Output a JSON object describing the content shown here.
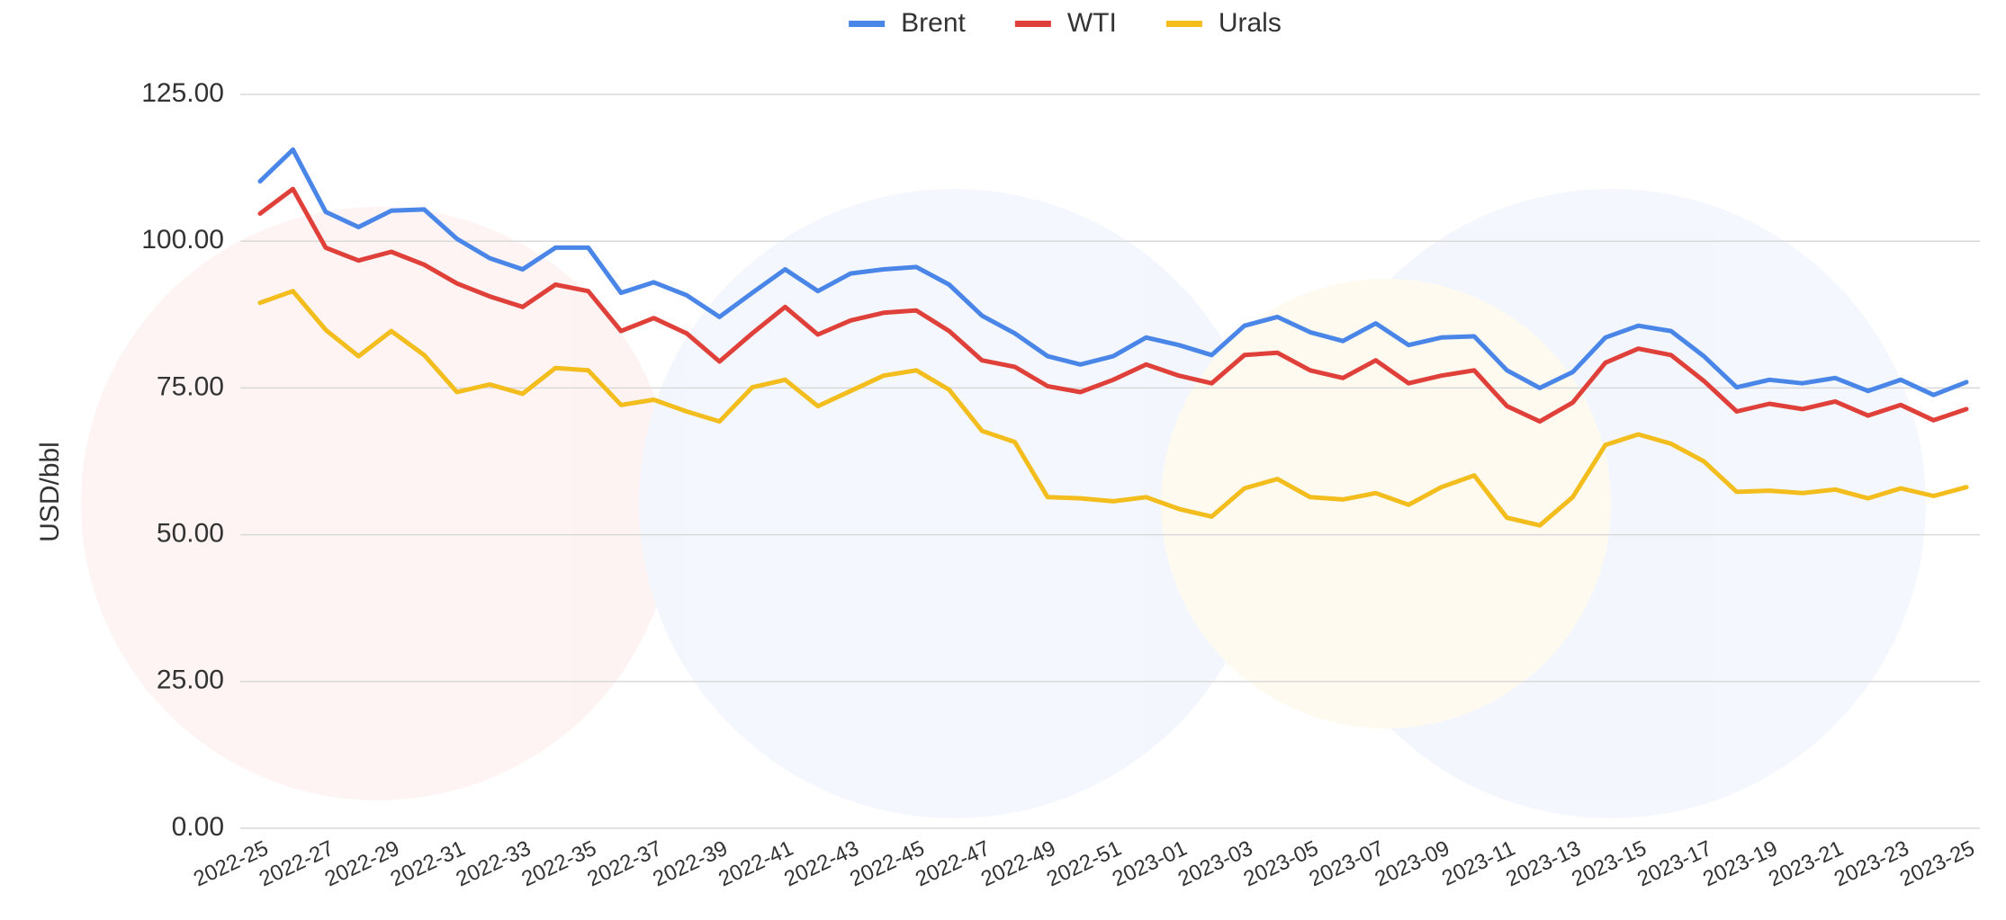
{
  "chart_data": {
    "type": "line",
    "y_label": "USD/bbl",
    "categories": [
      "2022-25",
      null,
      "2022-27",
      null,
      "2022-29",
      null,
      "2022-31",
      null,
      "2022-33",
      null,
      "2022-35",
      null,
      "2022-37",
      null,
      "2022-39",
      null,
      "2022-41",
      null,
      "2022-43",
      null,
      "2022-45",
      null,
      "2022-47",
      null,
      "2022-49",
      null,
      "2022-51",
      null,
      "2023-01",
      null,
      "2023-03",
      null,
      "2023-05",
      null,
      "2023-07",
      null,
      "2023-09",
      null,
      "2023-11",
      null,
      "2023-13",
      null,
      "2023-15",
      null,
      "2023-17",
      null,
      "2023-19",
      null,
      "2023-21",
      null,
      "2023-23",
      null,
      "2023-25"
    ],
    "series": [
      {
        "name": "Brent",
        "color": "#4a86e8",
        "values": [
          110.2,
          115.6,
          105,
          102.4,
          105.2,
          105.4,
          100.4,
          97.1,
          95.2,
          98.9,
          98.9,
          91.2,
          93,
          90.8,
          87.1,
          91.2,
          95.2,
          91.5,
          94.5,
          95.2,
          95.6,
          92.6,
          87.3,
          84.3,
          80.4,
          79,
          80.4,
          83.6,
          82.3,
          80.6,
          85.6,
          87.1,
          84.5,
          83,
          86,
          82.3,
          83.6,
          83.8,
          78,
          75,
          77.7,
          83.6,
          85.6,
          84.7,
          80.4,
          75.1,
          76.4,
          75.8,
          76.7,
          74.5,
          76.4,
          73.8,
          76
        ]
      },
      {
        "name": "WTI",
        "color": "#e0403a",
        "values": [
          104.7,
          108.9,
          98.9,
          96.7,
          98.2,
          96,
          92.8,
          90.6,
          88.8,
          92.6,
          91.5,
          84.7,
          86.9,
          84.3,
          79.5,
          84.3,
          88.8,
          84.1,
          86.5,
          87.8,
          88.2,
          84.7,
          79.7,
          78.6,
          75.3,
          74.3,
          76.4,
          79,
          77.1,
          75.8,
          80.6,
          81,
          78,
          76.7,
          79.7,
          75.8,
          77.1,
          78,
          71.9,
          69.3,
          72.5,
          79.3,
          81.7,
          80.6,
          76.2,
          71,
          72.3,
          71.4,
          72.7,
          70.3,
          72.1,
          69.5,
          71.4
        ]
      },
      {
        "name": "Urals",
        "color": "#f2bd1d",
        "values": [
          89.5,
          91.5,
          84.9,
          80.4,
          84.7,
          80.6,
          74.3,
          75.6,
          74,
          78.4,
          78,
          72.1,
          73,
          71,
          69.3,
          75.1,
          76.4,
          71.9,
          74.5,
          77.1,
          78,
          74.7,
          67.7,
          65.8,
          56.4,
          56.2,
          55.7,
          56.4,
          54.4,
          53.1,
          57.9,
          59.5,
          56.4,
          56,
          57.1,
          55.1,
          58.1,
          60.1,
          52.9,
          51.6,
          56.4,
          65.3,
          67.1,
          65.5,
          62.5,
          57.3,
          57.5,
          57.1,
          57.7,
          56.2,
          57.9,
          56.6,
          58.1
        ]
      }
    ],
    "ylim": [
      0,
      125
    ],
    "yticks": [
      {
        "value": 0,
        "label": "0.00"
      },
      {
        "value": 25,
        "label": "25.00"
      },
      {
        "value": 50,
        "label": "50.00"
      },
      {
        "value": 75,
        "label": "75.00"
      },
      {
        "value": 100,
        "label": "100.00"
      },
      {
        "value": 125,
        "label": "125.00"
      }
    ],
    "grid": true,
    "legend": "top"
  }
}
